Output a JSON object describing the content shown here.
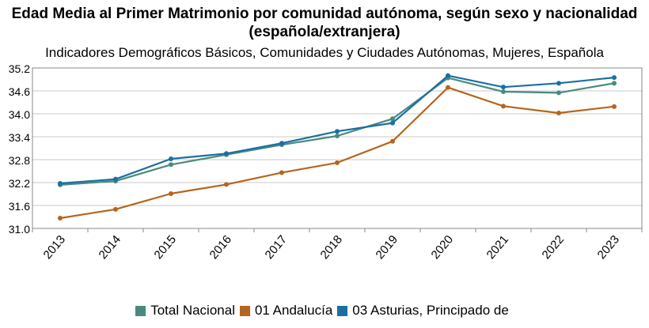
{
  "chart_data": {
    "type": "line",
    "title": "Edad Media al Primer Matrimonio por comunidad autónoma, según sexo y nacionalidad (española/extranjera)",
    "subtitle": "Indicadores Demográficos Básicos, Comunidades y Ciudades Autónomas, Mujeres, Española",
    "x": [
      "2013",
      "2014",
      "2015",
      "2016",
      "2017",
      "2018",
      "2019",
      "2020",
      "2021",
      "2022",
      "2023"
    ],
    "ylim": [
      31.0,
      35.2
    ],
    "yticks": [
      "31.0",
      "31.6",
      "32.2",
      "32.8",
      "33.4",
      "34.0",
      "34.6",
      "35.2"
    ],
    "grid": true,
    "legend_position": "bottom",
    "series": [
      {
        "name": "Total Nacional",
        "color": "#4a8a7e",
        "values": [
          32.14,
          32.24,
          32.67,
          32.93,
          33.19,
          33.42,
          33.87,
          34.94,
          34.58,
          34.55,
          34.8
        ]
      },
      {
        "name": "01 Andalucía",
        "color": "#b5651d",
        "values": [
          31.27,
          31.5,
          31.91,
          32.15,
          32.46,
          32.72,
          33.28,
          34.69,
          34.2,
          34.02,
          34.19
        ]
      },
      {
        "name": "03 Asturias, Principado de",
        "color": "#1a6fa3",
        "values": [
          32.18,
          32.29,
          32.82,
          32.96,
          33.23,
          33.54,
          33.76,
          35.0,
          34.7,
          34.8,
          34.95
        ]
      }
    ]
  }
}
